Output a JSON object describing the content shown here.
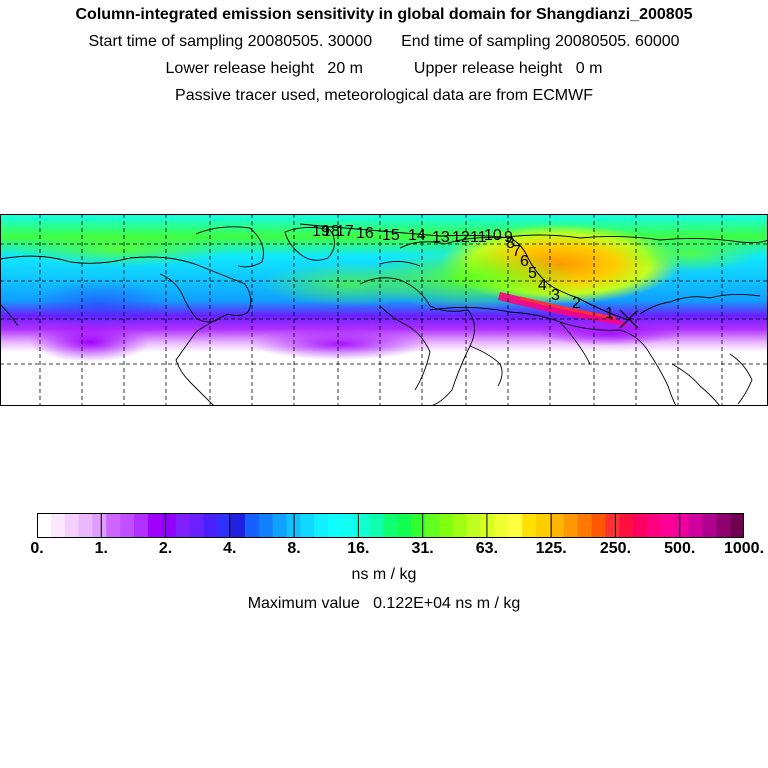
{
  "header": {
    "title": "Column-integrated emission sensitivity in global domain for Shangdianzi_200805",
    "start_label": "Start time of sampling",
    "start_value": "20080505. 30000",
    "end_label": "End time of sampling",
    "end_value": "20080505. 60000",
    "lower_label": "Lower release height",
    "lower_value": "20 m",
    "upper_label": "Upper release height",
    "upper_value": "0 m",
    "note": "Passive tracer used, meteorological data are from ECMWF"
  },
  "map": {
    "trajectory_labels": [
      "1",
      "2",
      "3",
      "4",
      "5",
      "6",
      "7",
      "8",
      "9",
      "10",
      "11",
      "12",
      "13",
      "14",
      "15",
      "16",
      "17",
      "18",
      "19"
    ],
    "receptor_marker": "release-site"
  },
  "colorbar": {
    "tick_labels": [
      "0.",
      "1.",
      "2.",
      "4.",
      "8.",
      "16.",
      "31.",
      "63.",
      "125.",
      "250.",
      "500.",
      "1000."
    ],
    "colors": [
      "#ffffff",
      "#fbe8ff",
      "#f5d0ff",
      "#eab8ff",
      "#df9cff",
      "#cc66ff",
      "#c050ff",
      "#b030ff",
      "#a000ff",
      "#9000ff",
      "#8020ff",
      "#6a20ff",
      "#4a20ff",
      "#3030ff",
      "#2020e0",
      "#1560ff",
      "#1080ff",
      "#10a0ff",
      "#10c0ff",
      "#10d8ff",
      "#10f0ff",
      "#10ffff",
      "#10fff0",
      "#10ffd0",
      "#10ffb0",
      "#10ff70",
      "#10ff50",
      "#30ff30",
      "#60ff20",
      "#80ff10",
      "#a0ff10",
      "#c0ff20",
      "#d8ff20",
      "#f0ff30",
      "#ffff40",
      "#ffe000",
      "#ffcc00",
      "#ffb400",
      "#ff9800",
      "#ff7800",
      "#ff5800",
      "#ff3030",
      "#ff1040",
      "#ff0060",
      "#ff0080",
      "#ff0099",
      "#f000a0",
      "#d000a0",
      "#b00090",
      "#900070",
      "#700050"
    ],
    "unit": "ns m / kg",
    "max_label": "Maximum value",
    "max_value": "0.122E+04 ns m / kg"
  }
}
